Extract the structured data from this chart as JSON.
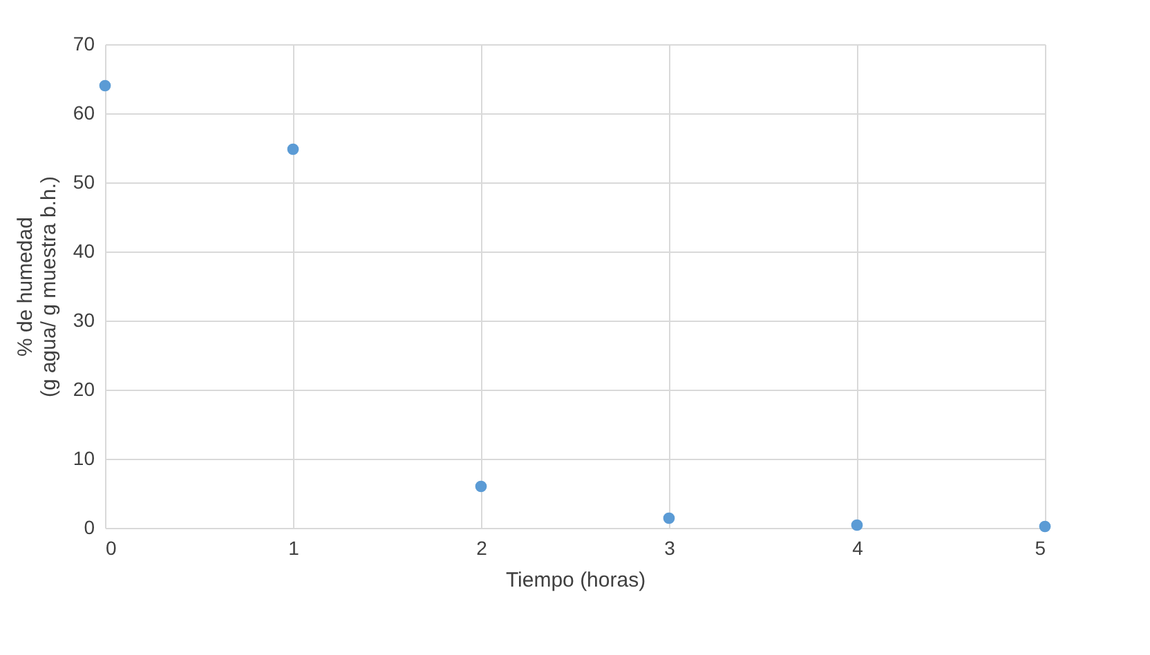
{
  "chart_data": {
    "type": "scatter",
    "xlabel": "Tiempo (horas)",
    "ylabel": "% de humedad\n(g agua/ g muestra b.h.)",
    "x": [
      0,
      1,
      2,
      3,
      4,
      5
    ],
    "series": [
      {
        "color": "#5b9bd5",
        "values": [
          64,
          54.8,
          6,
          1.4,
          0.4,
          0.2
        ]
      }
    ],
    "xlim": [
      0,
      5
    ],
    "xticks": [
      0,
      1,
      2,
      3,
      4,
      5
    ],
    "ylim": [
      0,
      70
    ],
    "yticks": [
      0,
      10,
      20,
      30,
      40,
      50,
      60,
      70
    ],
    "grid": true,
    "marker": "circle"
  }
}
